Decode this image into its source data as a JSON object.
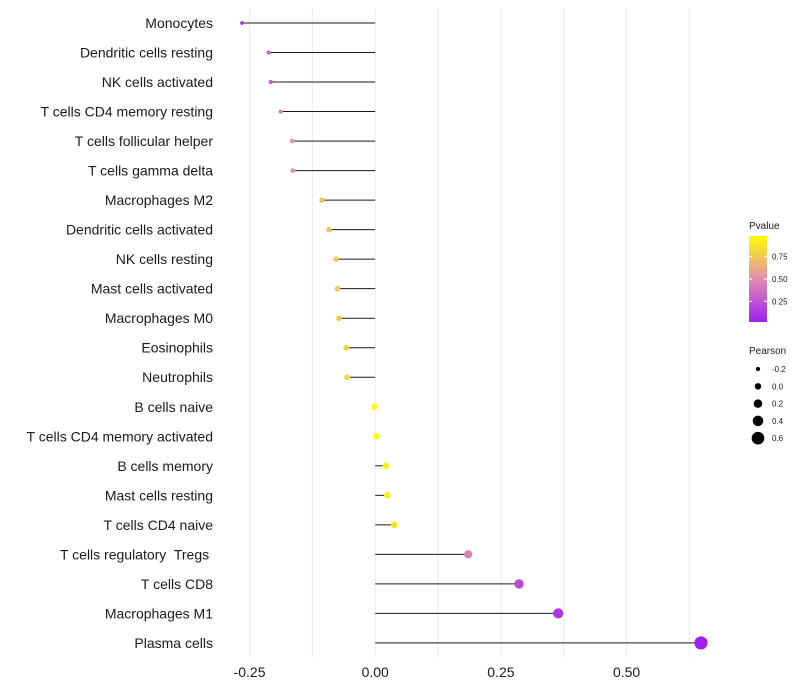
{
  "chart_data": {
    "type": "lollipop",
    "title": "",
    "xlabel": "",
    "ylabel": "",
    "xlim": [
      -0.265,
      0.66
    ],
    "xticks": [
      -0.25,
      0.0,
      0.25,
      0.5
    ],
    "xtick_labels": [
      "-0.25",
      "0.00",
      "0.25",
      "0.50"
    ],
    "grid": true,
    "legend_position": "right",
    "colors": {
      "low": "#a020f0",
      "high": "#ffff00",
      "stem": "#1a1a1a"
    },
    "categories": [
      "Monocytes",
      "Dendritic cells resting",
      "NK cells activated",
      "T cells CD4 memory resting",
      "T cells follicular helper",
      "T cells gamma delta",
      "Macrophages M2",
      "Dendritic cells activated",
      "NK cells resting",
      "Mast cells activated",
      "Macrophages M0",
      "Eosinophils",
      "Neutrophils",
      "B cells naive",
      "T cells CD4 memory activated",
      "B cells memory",
      "Mast cells resting",
      "T cells CD4 naive",
      "T cells regulatory  Tregs ",
      "T cells CD8",
      "Macrophages M1",
      "Plasma cells"
    ],
    "values": [
      -0.265,
      -0.212,
      -0.208,
      -0.188,
      -0.165,
      -0.164,
      -0.106,
      -0.092,
      -0.078,
      -0.075,
      -0.072,
      -0.058,
      -0.056,
      -0.002,
      0.002,
      0.021,
      0.024,
      0.038,
      0.185,
      0.286,
      0.364,
      0.648
    ],
    "pvalues": [
      0.05,
      0.3,
      0.3,
      0.45,
      0.55,
      0.55,
      0.7,
      0.72,
      0.75,
      0.75,
      0.76,
      0.8,
      0.8,
      0.98,
      0.98,
      0.92,
      0.92,
      0.88,
      0.45,
      0.2,
      0.12,
      0.02
    ],
    "pvalue_legend": {
      "title": "Pvalue",
      "breaks": [
        0.25,
        0.5,
        0.75
      ],
      "labels": [
        "0.25",
        "0.50",
        "0.75"
      ],
      "range": [
        0.02,
        0.98
      ]
    },
    "pearson_legend": {
      "title": "Pearson",
      "breaks": [
        -0.2,
        0.0,
        0.2,
        0.4,
        0.6
      ],
      "labels": [
        "-0.2",
        "0.0",
        "0.2",
        "0.4",
        "0.6"
      ]
    }
  }
}
